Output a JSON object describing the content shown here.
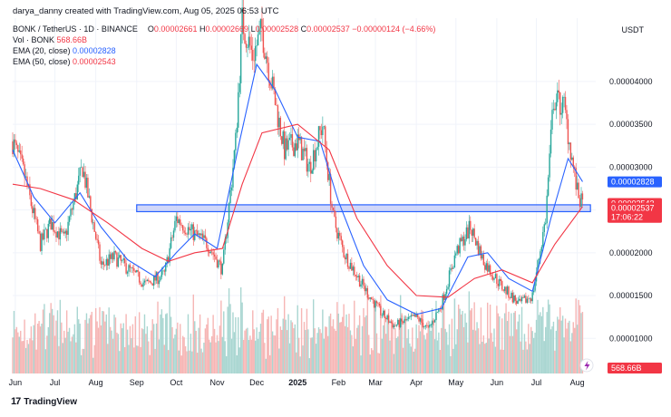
{
  "header": {
    "author_line": "darya_danny created with TradingView.com, Aug 05, 2025 06:53 UTC"
  },
  "legend": {
    "symbol": "BONK / TetherUS · 1D · BINANCE",
    "open_key": "O",
    "open": "0.00002661",
    "high_key": "H",
    "high": "0.00002669",
    "low_key": "L",
    "low": "0.00002528",
    "close_key": "C",
    "close": "0.00002537",
    "change": "−0.00000124 (−4.66%)",
    "vol_label": "Vol · BONK",
    "vol_value": "568.66B",
    "ema20_label": "EMA (20, close)",
    "ema20_value": "0.00002828",
    "ema50_label": "EMA (50, close)",
    "ema50_value": "0.00002543"
  },
  "currency": "USDT",
  "brand": {
    "logo": "17",
    "name": "TradingView"
  },
  "colors": {
    "up": "#26a69a",
    "down": "#ef5350",
    "ema20": "#2962ff",
    "ema50": "#f23645",
    "zone_fill": "#c5cdf7",
    "zone_stroke": "#2962ff",
    "vol_up": "#a9d6d1",
    "vol_down": "#f6b6b5"
  },
  "price_tags": {
    "ema20": "0.00002828",
    "ema50": "0.00002543",
    "last": "0.00002537",
    "countdown": "17:06:22",
    "volume": "568.66B"
  },
  "chart_data": {
    "type": "candlestick",
    "y_axis_ticks": [
      "0.00001000",
      "0.00001500",
      "0.00002000",
      "0.00002500",
      "0.00003000",
      "0.00003500",
      "0.00004000"
    ],
    "y_tick_values": [
      1e-05,
      1.5e-05,
      2e-05,
      2.5e-05,
      3e-05,
      3.5e-05,
      4e-05
    ],
    "ylim": [
      5.9e-06,
      4.74e-05
    ],
    "x_axis_ticks": [
      "Jun",
      "Jul",
      "Aug",
      "Sep",
      "Oct",
      "Nov",
      "Dec",
      "2025",
      "Feb",
      "Mar",
      "Apr",
      "May",
      "Jun",
      "Jul",
      "Aug"
    ],
    "x_tick_dates": [
      "2024-06-01",
      "2024-07-01",
      "2024-08-01",
      "2024-09-01",
      "2024-10-01",
      "2024-11-01",
      "2024-12-01",
      "2025-01-01",
      "2025-02-01",
      "2025-03-01",
      "2025-04-01",
      "2025-05-01",
      "2025-06-01",
      "2025-07-01",
      "2025-08-01"
    ],
    "xlim": [
      "2024-05-30",
      "2025-08-15"
    ],
    "support_zone": {
      "low": 2.48e-05,
      "high": 2.56e-05,
      "from": "2024-09-01",
      "to": "2025-08-11"
    },
    "price_path": [
      [
        "2024-05-30",
        3.3e-05
      ],
      [
        "2024-06-08",
        2.9e-05
      ],
      [
        "2024-06-20",
        2.1e-05
      ],
      [
        "2024-06-28",
        2.35e-05
      ],
      [
        "2024-07-08",
        2.15e-05
      ],
      [
        "2024-07-22",
        3e-05
      ],
      [
        "2024-08-05",
        1.85e-05
      ],
      [
        "2024-08-15",
        1.95e-05
      ],
      [
        "2024-08-28",
        1.78e-05
      ],
      [
        "2024-09-08",
        1.63e-05
      ],
      [
        "2024-09-22",
        1.75e-05
      ],
      [
        "2024-10-01",
        2.4e-05
      ],
      [
        "2024-10-12",
        2.25e-05
      ],
      [
        "2024-10-25",
        2.1e-05
      ],
      [
        "2024-11-05",
        1.8e-05
      ],
      [
        "2024-11-15",
        3.3e-05
      ],
      [
        "2024-11-20",
        4.7e-05
      ],
      [
        "2024-11-28",
        4.3e-05
      ],
      [
        "2024-12-05",
        4.6e-05
      ],
      [
        "2024-12-12",
        4e-05
      ],
      [
        "2024-12-22",
        3.2e-05
      ],
      [
        "2025-01-01",
        3.3e-05
      ],
      [
        "2025-01-10",
        3e-05
      ],
      [
        "2025-01-20",
        3.5e-05
      ],
      [
        "2025-01-28",
        2.4e-05
      ],
      [
        "2025-02-05",
        2e-05
      ],
      [
        "2025-02-20",
        1.6e-05
      ],
      [
        "2025-03-05",
        1.3e-05
      ],
      [
        "2025-03-15",
        1.15e-05
      ],
      [
        "2025-04-01",
        1.25e-05
      ],
      [
        "2025-04-10",
        1.1e-05
      ],
      [
        "2025-04-20",
        1.4e-05
      ],
      [
        "2025-05-01",
        2e-05
      ],
      [
        "2025-05-12",
        2.3e-05
      ],
      [
        "2025-05-22",
        1.9e-05
      ],
      [
        "2025-06-05",
        1.6e-05
      ],
      [
        "2025-06-18",
        1.4e-05
      ],
      [
        "2025-06-28",
        1.5e-05
      ],
      [
        "2025-07-08",
        2.4e-05
      ],
      [
        "2025-07-14",
        3.8e-05
      ],
      [
        "2025-07-22",
        3.7e-05
      ],
      [
        "2025-08-01",
        2.7e-05
      ],
      [
        "2025-08-05",
        2.54e-05
      ]
    ],
    "series": [
      {
        "name": "EMA (20, close)",
        "values": [
          [
            "2024-05-30",
            3.2e-05
          ],
          [
            "2024-06-15",
            2.65e-05
          ],
          [
            "2024-07-01",
            2.35e-05
          ],
          [
            "2024-07-20",
            2.7e-05
          ],
          [
            "2024-08-05",
            2.3e-05
          ],
          [
            "2024-08-25",
            1.92e-05
          ],
          [
            "2024-09-15",
            1.72e-05
          ],
          [
            "2024-10-01",
            2e-05
          ],
          [
            "2024-10-15",
            2.22e-05
          ],
          [
            "2024-11-01",
            2.05e-05
          ],
          [
            "2024-11-18",
            3.3e-05
          ],
          [
            "2024-12-01",
            4.2e-05
          ],
          [
            "2024-12-15",
            3.9e-05
          ],
          [
            "2025-01-01",
            3.35e-05
          ],
          [
            "2025-01-18",
            3.3e-05
          ],
          [
            "2025-02-01",
            2.6e-05
          ],
          [
            "2025-02-20",
            1.85e-05
          ],
          [
            "2025-03-10",
            1.45e-05
          ],
          [
            "2025-04-01",
            1.28e-05
          ],
          [
            "2025-04-20",
            1.35e-05
          ],
          [
            "2025-05-10",
            1.95e-05
          ],
          [
            "2025-05-25",
            2e-05
          ],
          [
            "2025-06-10",
            1.7e-05
          ],
          [
            "2025-06-28",
            1.55e-05
          ],
          [
            "2025-07-12",
            2.4e-05
          ],
          [
            "2025-07-25",
            3.1e-05
          ],
          [
            "2025-08-05",
            2.83e-05
          ]
        ]
      },
      {
        "name": "EMA (50, close)",
        "values": [
          [
            "2024-05-30",
            2.8e-05
          ],
          [
            "2024-06-20",
            2.75e-05
          ],
          [
            "2024-07-15",
            2.62e-05
          ],
          [
            "2024-08-10",
            2.35e-05
          ],
          [
            "2024-09-05",
            2.05e-05
          ],
          [
            "2024-09-25",
            1.9e-05
          ],
          [
            "2024-10-15",
            2e-05
          ],
          [
            "2024-11-05",
            2.05e-05
          ],
          [
            "2024-11-20",
            2.8e-05
          ],
          [
            "2024-12-05",
            3.4e-05
          ],
          [
            "2025-01-01",
            3.5e-05
          ],
          [
            "2025-01-25",
            3.2e-05
          ],
          [
            "2025-02-15",
            2.4e-05
          ],
          [
            "2025-03-10",
            1.85e-05
          ],
          [
            "2025-04-01",
            1.5e-05
          ],
          [
            "2025-04-25",
            1.48e-05
          ],
          [
            "2025-05-15",
            1.7e-05
          ],
          [
            "2025-06-05",
            1.8e-05
          ],
          [
            "2025-06-28",
            1.65e-05
          ],
          [
            "2025-07-15",
            2.1e-05
          ],
          [
            "2025-08-05",
            2.54e-05
          ]
        ]
      }
    ]
  }
}
